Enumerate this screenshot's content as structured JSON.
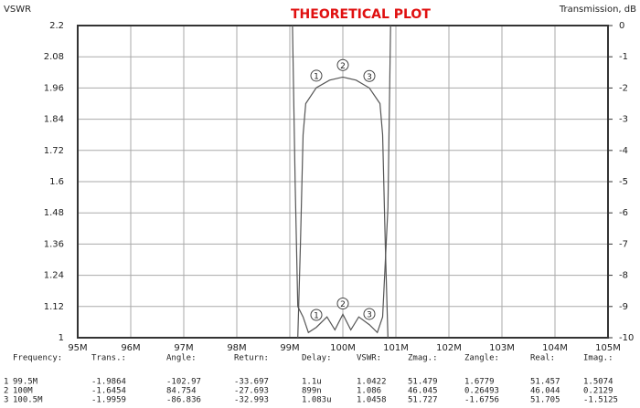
{
  "chart_data": {
    "type": "line",
    "title": "THEORETICAL PLOT",
    "title_color": "#e01010",
    "ylabel": "VSWR",
    "y2label": "Transmission, dB",
    "xlim": [
      95,
      105
    ],
    "xticks": [
      {
        "value": 95,
        "label": "95M"
      },
      {
        "value": 96,
        "label": "96M"
      },
      {
        "value": 97,
        "label": "97M"
      },
      {
        "value": 98,
        "label": "98M"
      },
      {
        "value": 99,
        "label": "99M"
      },
      {
        "value": 100,
        "label": "100M"
      },
      {
        "value": 101,
        "label": "101M"
      },
      {
        "value": 102,
        "label": "102M"
      },
      {
        "value": 103,
        "label": "103M"
      },
      {
        "value": 104,
        "label": "104M"
      },
      {
        "value": 105,
        "label": "105M"
      }
    ],
    "ylim": [
      1,
      2.2
    ],
    "yticks": [
      1,
      1.12,
      1.24,
      1.36,
      1.48,
      1.6,
      1.72,
      1.84,
      1.96,
      2.08,
      2.2
    ],
    "y2lim": [
      -10,
      0
    ],
    "y2ticks": [
      0,
      -1,
      -2,
      -3,
      -4,
      -5,
      -6,
      -7,
      -8,
      -9,
      -10
    ],
    "grid": true,
    "series": [
      {
        "axis": "y",
        "color": "#555555",
        "x": [
          99.05,
          99.1,
          99.15,
          99.25,
          99.35,
          99.5,
          99.7,
          99.85,
          100,
          100.15,
          100.3,
          100.5,
          100.65,
          100.75,
          100.85,
          100.9
        ],
        "values": [
          2.2,
          1.6,
          1.12,
          1.08,
          1.02,
          1.04,
          1.08,
          1.03,
          1.09,
          1.03,
          1.08,
          1.05,
          1.02,
          1.08,
          1.5,
          2.2
        ]
      },
      {
        "axis": "y2",
        "color": "#555555",
        "x": [
          99.15,
          99.2,
          99.25,
          99.3,
          99.5,
          99.75,
          100,
          100.25,
          100.5,
          100.7,
          100.75,
          100.8,
          100.85
        ],
        "values": [
          -10,
          -7,
          -3.5,
          -2.5,
          -1.99,
          -1.75,
          -1.65,
          -1.75,
          -2.0,
          -2.5,
          -3.5,
          -7,
          -10
        ]
      }
    ],
    "markers": [
      {
        "label": "1",
        "x": 99.5,
        "vswr": 1.0422,
        "trans": -1.9864
      },
      {
        "label": "2",
        "x": 100,
        "vswr": 1.086,
        "trans": -1.6454
      },
      {
        "label": "3",
        "x": 100.5,
        "vswr": 1.0458,
        "trans": -1.9959
      }
    ]
  },
  "table": {
    "headers": [
      "Frequency:",
      "Trans.:",
      "Angle:",
      "Return:",
      "Delay:",
      "VSWR:",
      "Zmag.:",
      "Zangle:",
      "Real:",
      "Imag.:"
    ],
    "rows": [
      [
        "1",
        "99.5M",
        "-1.9864",
        "-102.97",
        "-33.697",
        "1.1u",
        "1.0422",
        "51.479",
        "1.6779",
        "51.457",
        "1.5074"
      ],
      [
        "2",
        "100M",
        "-1.6454",
        "84.754",
        "-27.693",
        "899n",
        "1.086",
        "46.045",
        "0.26493",
        "46.044",
        "0.2129"
      ],
      [
        "3",
        "100.5M",
        "-1.9959",
        "-86.836",
        "-32.993",
        "1.083u",
        "1.0458",
        "51.727",
        "-1.6756",
        "51.705",
        "-1.5125"
      ]
    ]
  }
}
